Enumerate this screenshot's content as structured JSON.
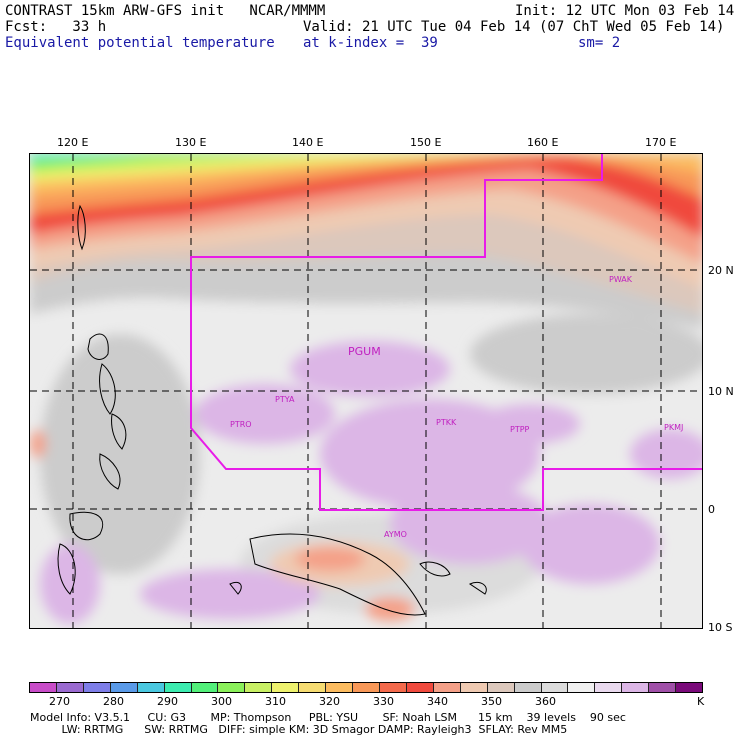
{
  "header": {
    "title": "CONTRAST 15km ARW-GFS init   NCAR/MMMM",
    "init": "Init: 12 UTC Mon 03 Feb 14",
    "fcst_label": "Fcst:   33 h",
    "valid": "Valid: 21 UTC Tue 04 Feb 14 (07 ChT Wed 05 Feb 14)",
    "field": "Equivalent potential temperature",
    "level": "at k-index =  39",
    "smooth": "sm= 2"
  },
  "map": {
    "lon_labels": [
      "120 E",
      "130 E",
      "140 E",
      "150 E",
      "160 E",
      "170 E"
    ],
    "lat_labels": [
      "20 N",
      "10 N",
      "0",
      "10 S"
    ],
    "stations": [
      "PGUM",
      "PTYA",
      "PTRO",
      "PTKK",
      "PTPP",
      "PKMJ",
      "PWAK",
      "AYMO"
    ],
    "domain_color": "#e81ce8"
  },
  "colorbar": {
    "colors": [
      "#c84cc8",
      "#9a6ad0",
      "#7e7ee8",
      "#5a9ae8",
      "#4ac8e0",
      "#3cecb0",
      "#52f07a",
      "#8af05a",
      "#c8f064",
      "#eef26e",
      "#f6dc72",
      "#fcbc60",
      "#f89858",
      "#f46a4c",
      "#f04a3e",
      "#f4a088",
      "#efcab2",
      "#dcc8bc",
      "#cccccc",
      "#dcdcdc",
      "#f0f0f0",
      "#eadaef",
      "#dcb6e6",
      "#a050a8",
      "#7a0a7a"
    ],
    "labels": [
      "270",
      "280",
      "290",
      "300",
      "310",
      "320",
      "330",
      "340",
      "350",
      "360",
      "K"
    ]
  },
  "model_info": {
    "line1": "Model Info: V3.5.1     CU: G3       MP: Thompson     PBL: YSU       SF: Noah LSM      15 km    39 levels    90 sec",
    "line2": "         LW: RRTMG      SW: RRTMG   DIFF: simple KM: 3D Smagor DAMP: Rayleigh3  SFLAY: Rev MM5"
  }
}
